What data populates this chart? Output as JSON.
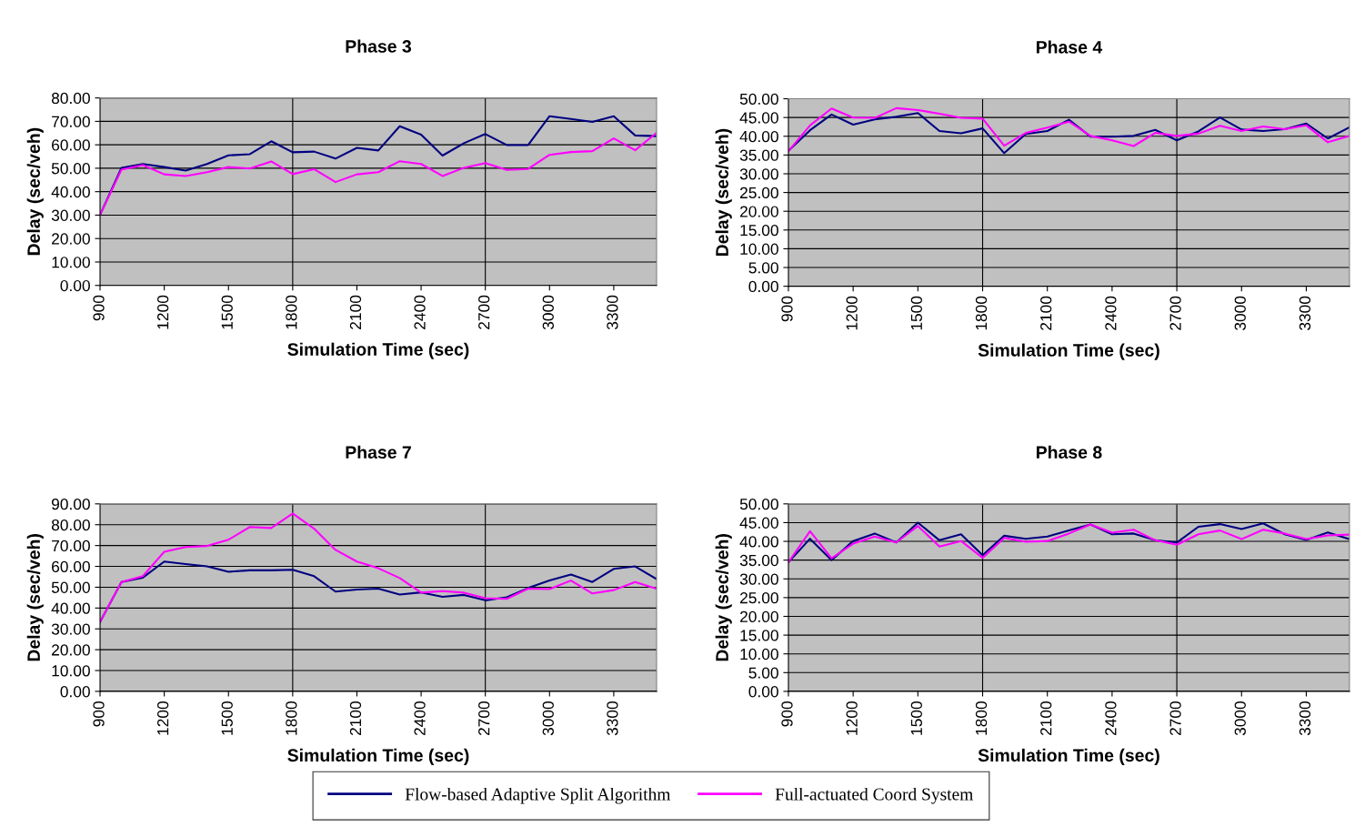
{
  "chart_data": [
    {
      "type": "line",
      "title": "Phase 3",
      "xlabel": "Simulation Time (sec)",
      "ylabel": "Delay (sec/veh)",
      "x": [
        900,
        1000,
        1100,
        1200,
        1300,
        1400,
        1500,
        1600,
        1700,
        1800,
        1900,
        2000,
        2100,
        2200,
        2300,
        2400,
        2500,
        2600,
        2700,
        2800,
        2900,
        3000,
        3100,
        3200,
        3300,
        3400,
        3500
      ],
      "series": [
        {
          "name": "Flow-based Adaptive Split Algorithm",
          "color": "#000080",
          "values": [
            30.1,
            50.2,
            51.8,
            50.5,
            49,
            51.8,
            55.5,
            56,
            61.5,
            56.8,
            57.1,
            54.1,
            58.7,
            57.6,
            67.9,
            64.3,
            55.4,
            60.7,
            64.6,
            59.9,
            59.9,
            72.2,
            71,
            69.8,
            72.2,
            64,
            63.7
          ]
        },
        {
          "name": "Full-actuated Coord System",
          "color": "#ff00ff",
          "values": [
            30,
            49.4,
            51.3,
            47.4,
            46.7,
            48.3,
            50.5,
            49.9,
            52.9,
            47.5,
            49.6,
            44.1,
            47.4,
            48.3,
            53,
            51.8,
            46.7,
            50.2,
            52.2,
            49.3,
            49.7,
            55.7,
            56.9,
            57.3,
            62.7,
            57.7,
            65.1
          ]
        }
      ],
      "xlim": [
        900,
        3500
      ],
      "xticks": [
        900,
        1200,
        1500,
        1800,
        2100,
        2400,
        2700,
        3000,
        3300
      ],
      "ylim": [
        0,
        80
      ],
      "yticks": [
        {
          "value": 0,
          "label": "0.00"
        },
        {
          "value": 10,
          "label": "10.00"
        },
        {
          "value": 20,
          "label": "20.00"
        },
        {
          "value": 30,
          "label": "30.00"
        },
        {
          "value": 40,
          "label": "40.00"
        },
        {
          "value": 50,
          "label": "50.00"
        },
        {
          "value": 60,
          "label": "60.00"
        },
        {
          "value": 70,
          "label": "70.00"
        },
        {
          "value": 80,
          "label": "80.00"
        }
      ],
      "grid": "y",
      "ref_lines": [
        {
          "axis": "x",
          "value": 1800,
          "color": "#000000"
        },
        {
          "axis": "x",
          "value": 2700,
          "color": "#000000"
        }
      ],
      "legend": "bottom",
      "marker": "none",
      "line_style": "solid"
    },
    {
      "type": "line",
      "title": "Phase 4",
      "xlabel": "Simulation Time (sec)",
      "ylabel": "Delay (sec/veh)",
      "x": [
        900,
        1000,
        1100,
        1200,
        1300,
        1400,
        1500,
        1600,
        1700,
        1800,
        1900,
        2000,
        2100,
        2200,
        2300,
        2400,
        2500,
        2600,
        2700,
        2800,
        2900,
        3000,
        3100,
        3200,
        3300,
        3400,
        3500
      ],
      "series": [
        {
          "color": "#000080",
          "values": [
            36.1,
            41.6,
            45.8,
            43.1,
            44.5,
            45.2,
            46.2,
            41.4,
            40.8,
            42.1,
            35.5,
            40.6,
            41.4,
            44.4,
            39.9,
            39.9,
            40.1,
            41.7,
            38.9,
            41.3,
            45,
            41.8,
            41.4,
            41.9,
            43.4,
            39.4,
            42.4
          ]
        },
        {
          "color": "#ff00ff",
          "values": [
            36,
            42.9,
            47.4,
            45,
            44.9,
            47.5,
            47,
            46,
            44.9,
            44.7,
            37.5,
            40.9,
            42.3,
            43.9,
            40.1,
            38.9,
            37.4,
            40.9,
            40.1,
            40.7,
            42.8,
            41.4,
            42.6,
            41.9,
            42.9,
            38.4,
            40.1
          ]
        }
      ],
      "xlim": [
        900,
        3500
      ],
      "xticks": [
        900,
        1200,
        1500,
        1800,
        2100,
        2400,
        2700,
        3000,
        3300
      ],
      "ylim": [
        0,
        50
      ],
      "yticks": [
        {
          "value": 0,
          "label": "0.00"
        },
        {
          "value": 5,
          "label": "5.00"
        },
        {
          "value": 10,
          "label": "10.00"
        },
        {
          "value": 15,
          "label": "15.00"
        },
        {
          "value": 20,
          "label": "20.00"
        },
        {
          "value": 25,
          "label": "25.00"
        },
        {
          "value": 30,
          "label": "30.00"
        },
        {
          "value": 35,
          "label": "35.00"
        },
        {
          "value": 40,
          "label": "40.00"
        },
        {
          "value": 45,
          "label": "45.00"
        },
        {
          "value": 50,
          "label": "50.00"
        }
      ],
      "grid": "y",
      "ref_lines": [
        {
          "axis": "x",
          "value": 1800,
          "color": "#000000"
        },
        {
          "axis": "x",
          "value": 2700,
          "color": "#000000"
        }
      ],
      "legend": false,
      "marker": "none",
      "line_style": "solid"
    },
    {
      "type": "line",
      "title": "Phase 7",
      "xlabel": "Simulation Time (sec)",
      "ylabel": "Delay (sec/veh)",
      "x": [
        900,
        1000,
        1100,
        1200,
        1300,
        1400,
        1500,
        1600,
        1700,
        1800,
        1900,
        2000,
        2100,
        2200,
        2300,
        2400,
        2500,
        2600,
        2700,
        2800,
        2900,
        3000,
        3100,
        3200,
        3300,
        3400,
        3500
      ],
      "series": [
        {
          "color": "#000080",
          "values": [
            33.3,
            52.5,
            54.6,
            62.3,
            61.1,
            60,
            57.4,
            58.1,
            58.1,
            58.4,
            55.3,
            47.9,
            48.9,
            49.3,
            46.5,
            47.5,
            45.4,
            46.3,
            43.7,
            45.2,
            49.6,
            53.2,
            56.1,
            52.5,
            58.8,
            60,
            53.9
          ]
        },
        {
          "color": "#ff00ff",
          "values": [
            33.3,
            52.5,
            55.3,
            67,
            69.3,
            69.8,
            72.8,
            78.9,
            78.4,
            85.4,
            78.1,
            67.9,
            62.3,
            59.1,
            54.4,
            47.4,
            48.1,
            47.4,
            44.7,
            44.4,
            49.3,
            49.1,
            53.2,
            47,
            48.6,
            52.5,
            49.3
          ]
        }
      ],
      "xlim": [
        900,
        3500
      ],
      "xticks": [
        900,
        1200,
        1500,
        1800,
        2100,
        2400,
        2700,
        3000,
        3300
      ],
      "ylim": [
        0,
        90
      ],
      "yticks": [
        {
          "value": 0,
          "label": "0.00"
        },
        {
          "value": 10,
          "label": "10.00"
        },
        {
          "value": 20,
          "label": "20.00"
        },
        {
          "value": 30,
          "label": "30.00"
        },
        {
          "value": 40,
          "label": "40.00"
        },
        {
          "value": 50,
          "label": "50.00"
        },
        {
          "value": 60,
          "label": "60.00"
        },
        {
          "value": 70,
          "label": "70.00"
        },
        {
          "value": 80,
          "label": "80.00"
        },
        {
          "value": 90,
          "label": "90.00"
        }
      ],
      "grid": "y",
      "ref_lines": [
        {
          "axis": "x",
          "value": 1800,
          "color": "#000000"
        },
        {
          "axis": "x",
          "value": 2700,
          "color": "#000000"
        }
      ],
      "legend": false,
      "marker": "none",
      "line_style": "solid"
    },
    {
      "type": "line",
      "title": "Phase 8",
      "xlabel": "Simulation Time (sec)",
      "ylabel": "Delay (sec/veh)",
      "x": [
        900,
        1000,
        1100,
        1200,
        1300,
        1400,
        1500,
        1600,
        1700,
        1800,
        1900,
        2000,
        2100,
        2200,
        2300,
        2400,
        2500,
        2600,
        2700,
        2800,
        2900,
        3000,
        3100,
        3200,
        3300,
        3400,
        3500
      ],
      "series": [
        {
          "color": "#000080",
          "values": [
            34.4,
            40.7,
            35,
            40.1,
            42.1,
            39.7,
            45,
            40.3,
            41.9,
            36.3,
            41.5,
            40.7,
            41.3,
            42.9,
            44.5,
            41.9,
            42.1,
            40.3,
            39.7,
            43.9,
            44.6,
            43.3,
            44.8,
            41.9,
            40.4,
            42.4,
            40.6
          ]
        },
        {
          "color": "#ff00ff",
          "values": [
            34.4,
            42.7,
            35.5,
            39.4,
            41.3,
            39.7,
            44.1,
            38.6,
            40.1,
            35.6,
            40.9,
            39.9,
            40.1,
            42.1,
            44.5,
            42.3,
            43.1,
            40.3,
            39.1,
            41.9,
            42.9,
            40.6,
            43.1,
            42.1,
            40.6,
            41.6,
            41.8
          ]
        }
      ],
      "xlim": [
        900,
        3500
      ],
      "xticks": [
        900,
        1200,
        1500,
        1800,
        2100,
        2400,
        2700,
        3000,
        3300
      ],
      "ylim": [
        0,
        50
      ],
      "yticks": [
        {
          "value": 0,
          "label": "0.00"
        },
        {
          "value": 5,
          "label": "5.00"
        },
        {
          "value": 10,
          "label": "10.00"
        },
        {
          "value": 15,
          "label": "15.00"
        },
        {
          "value": 20,
          "label": "20.00"
        },
        {
          "value": 25,
          "label": "25.00"
        },
        {
          "value": 30,
          "label": "30.00"
        },
        {
          "value": 35,
          "label": "35.00"
        },
        {
          "value": 40,
          "label": "40.00"
        },
        {
          "value": 45,
          "label": "45.00"
        },
        {
          "value": 50,
          "label": "50.00"
        }
      ],
      "grid": "y",
      "ref_lines": [
        {
          "axis": "x",
          "value": 1800,
          "color": "#000000"
        },
        {
          "axis": "x",
          "value": 2700,
          "color": "#000000"
        }
      ],
      "marker": "none",
      "line_style": "solid"
    }
  ]
}
